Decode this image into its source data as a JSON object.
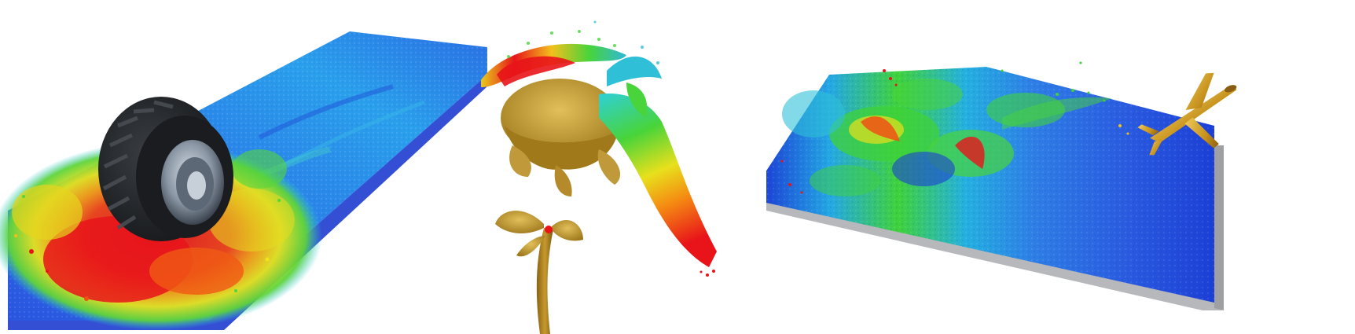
{
  "figure": {
    "panels": [
      {
        "id": "tire",
        "subject": "tire-on-particle-sand-bed"
      },
      {
        "id": "flower",
        "subject": "flower-with-cloth-sheet"
      },
      {
        "id": "pool",
        "subject": "airplane-over-particle-fluid-tank"
      }
    ],
    "colors": {
      "background": "#ffffff",
      "low": "#1c3fd6",
      "cyan": "#20c4e8",
      "mid": "#3fd23a",
      "high_mid": "#f2e21c",
      "orange": "#f58a12",
      "high": "#e8141a",
      "tire_rubber": "#202326",
      "rim_metal": "#9aa6b4",
      "flower_gold": "#b48a24",
      "plane_gold": "#d3a02c",
      "tray_gray": "#b6b8bc"
    }
  }
}
